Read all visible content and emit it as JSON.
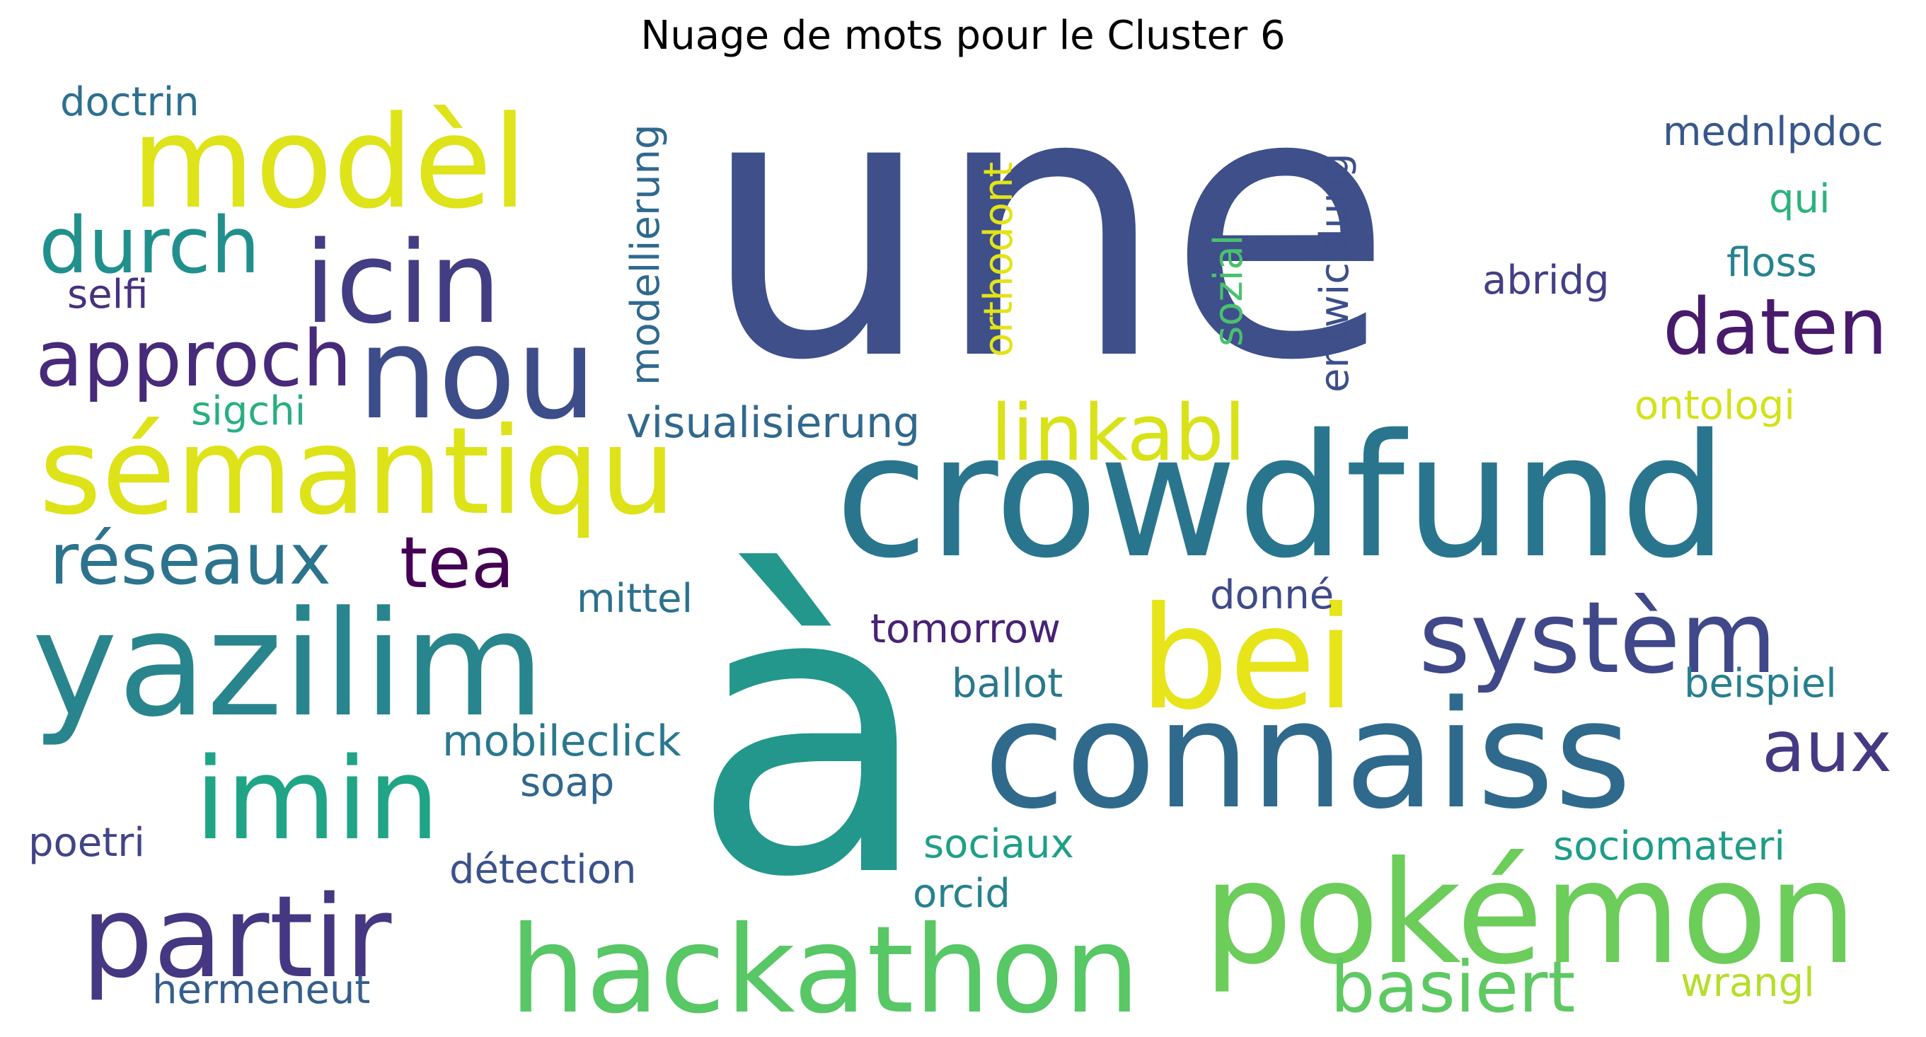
{
  "title": "Nuage de mots pour le Cluster 6",
  "words": [
    {
      "text": "une",
      "color": "#3e4f8a"
    },
    {
      "text": "à",
      "color": "#23978b"
    },
    {
      "text": "crowdfund",
      "color": "#2a758e"
    },
    {
      "text": "connaiss",
      "color": "#2f6a8d"
    },
    {
      "text": "yazilim",
      "color": "#29858d"
    },
    {
      "text": "pokémon",
      "color": "#6ccd5a"
    },
    {
      "text": "hackathon",
      "color": "#58c765"
    },
    {
      "text": "bei",
      "color": "#e7e419"
    },
    {
      "text": "modèl",
      "color": "#dfe319"
    },
    {
      "text": "sémantiqu",
      "color": "#dde318"
    },
    {
      "text": "nou",
      "color": "#3d4d8a"
    },
    {
      "text": "icin",
      "color": "#433d84"
    },
    {
      "text": "partir",
      "color": "#453781"
    },
    {
      "text": "imin",
      "color": "#20a486"
    },
    {
      "text": "systèm",
      "color": "#3f4889"
    },
    {
      "text": "daten",
      "color": "#481a6c"
    },
    {
      "text": "linkabl",
      "color": "#d8e219"
    },
    {
      "text": "approch",
      "color": "#472a7a"
    },
    {
      "text": "durch",
      "color": "#21908d"
    },
    {
      "text": "réseaux",
      "color": "#2c738e"
    },
    {
      "text": "tea",
      "color": "#440154"
    },
    {
      "text": "basiert",
      "color": "#5ec962"
    },
    {
      "text": "aux",
      "color": "#443a83"
    },
    {
      "text": "visualisierung",
      "color": "#31688e"
    },
    {
      "text": "mobileclick",
      "color": "#2a788e"
    },
    {
      "text": "tomorrow",
      "color": "#482374"
    },
    {
      "text": "mittel",
      "color": "#2c728e"
    },
    {
      "text": "ballot",
      "color": "#2a788e"
    },
    {
      "text": "soap",
      "color": "#31678e"
    },
    {
      "text": "détection",
      "color": "#3b528b"
    },
    {
      "text": "sociaux",
      "color": "#1f9f88"
    },
    {
      "text": "orcid",
      "color": "#26828e"
    },
    {
      "text": "hermeneut",
      "color": "#355f8d"
    },
    {
      "text": "poetri",
      "color": "#414487"
    },
    {
      "text": "doctrin",
      "color": "#2d708e"
    },
    {
      "text": "selfi",
      "color": "#46327e"
    },
    {
      "text": "sigchi",
      "color": "#29af7f"
    },
    {
      "text": "donné",
      "color": "#3e4a89"
    },
    {
      "text": "abridg",
      "color": "#424086"
    },
    {
      "text": "mednlpdoc",
      "color": "#38588c"
    },
    {
      "text": "qui",
      "color": "#2db27d"
    },
    {
      "text": "floss",
      "color": "#25848e"
    },
    {
      "text": "ontologi",
      "color": "#d2e21b"
    },
    {
      "text": "beispiel",
      "color": "#277f8e"
    },
    {
      "text": "sociomateri",
      "color": "#1e9c89"
    },
    {
      "text": "wrangl",
      "color": "#b5de2b"
    },
    {
      "text": "modellierung",
      "color": "#30698e"
    },
    {
      "text": "orthodont",
      "color": "#e2e418"
    },
    {
      "text": "sozial",
      "color": "#4ac16d"
    },
    {
      "text": "entwicklung",
      "color": "#3c4f8a"
    }
  ]
}
